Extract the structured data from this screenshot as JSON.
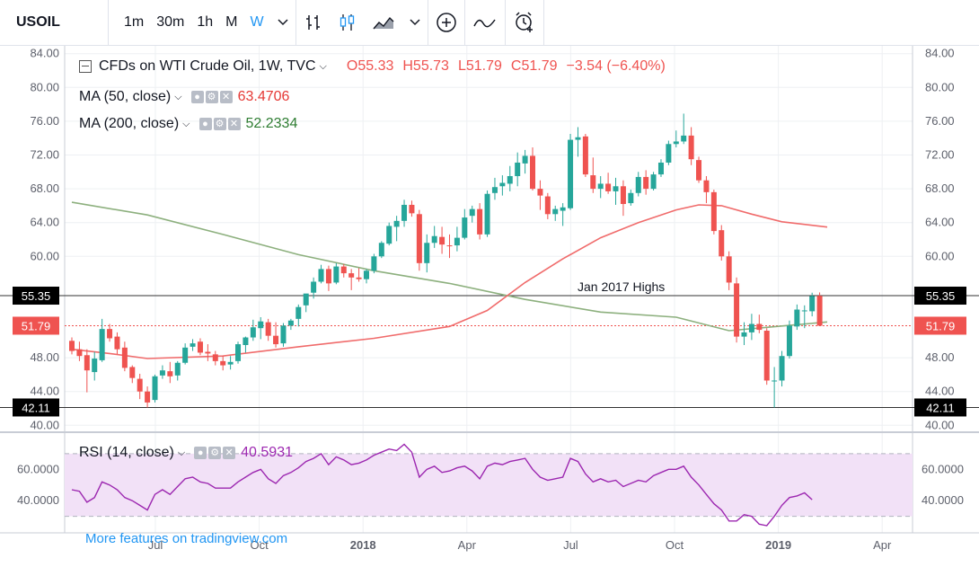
{
  "toolbar": {
    "symbol": "USOIL",
    "intervals": [
      "1m",
      "30m",
      "1h",
      "M",
      "W"
    ],
    "active_interval": "W",
    "icons": [
      "chevron-down-icon",
      "bar-style-icon",
      "candle-style-icon",
      "area-style-icon",
      "chevron-down-icon",
      "add-compare-icon",
      "indicators-icon",
      "alert-icon"
    ]
  },
  "legend": {
    "main_title": "CFDs on WTI Crude Oil, 1W, TVC",
    "open": "O55.33",
    "high": "H55.73",
    "low": "L51.79",
    "close": "C51.79",
    "change": "−3.54 (−6.40%)",
    "ma50_title": "MA (50, close)",
    "ma50_value": "63.4706",
    "ma200_title": "MA (200, close)",
    "ma200_value": "52.2334",
    "rsi_title": "RSI (14, close)",
    "rsi_value": "40.5931"
  },
  "promo_text": "More features on tradingview.com",
  "colors": {
    "up": "#26a69a",
    "down": "#ef5350",
    "ma50": "#f06b6b",
    "ma200": "#8db07e",
    "rsi": "#9c27b0",
    "rsi_band": "#f2e1f7",
    "ma200_text": "#2e7d32"
  },
  "chart_data": {
    "type": "candlestick",
    "main": {
      "y_ticks": [
        "84.00",
        "80.00",
        "76.00",
        "72.00",
        "68.00",
        "64.00",
        "60.00",
        "48.00",
        "44.00",
        "40.00"
      ],
      "ylim": [
        39.5,
        84.5
      ],
      "x_ticks": [
        "Jul",
        "Oct",
        "2018",
        "Apr",
        "Jul",
        "Oct",
        "2019",
        "Apr"
      ],
      "x_ticks_bold": [
        "2018",
        "2019"
      ],
      "candles": [
        {
          "o": 50.0,
          "h": 50.4,
          "l": 48.4,
          "c": 48.8
        },
        {
          "o": 49.0,
          "h": 49.9,
          "l": 47.6,
          "c": 48.2
        },
        {
          "o": 48.3,
          "h": 49.0,
          "l": 43.9,
          "c": 46.5
        },
        {
          "o": 46.3,
          "h": 48.7,
          "l": 45.3,
          "c": 47.9
        },
        {
          "o": 47.7,
          "h": 52.6,
          "l": 47.5,
          "c": 51.4
        },
        {
          "o": 51.4,
          "h": 52.0,
          "l": 49.9,
          "c": 50.3
        },
        {
          "o": 50.5,
          "h": 51.0,
          "l": 48.4,
          "c": 49.0
        },
        {
          "o": 49.2,
          "h": 49.9,
          "l": 46.4,
          "c": 46.8
        },
        {
          "o": 46.9,
          "h": 47.1,
          "l": 45.0,
          "c": 45.6
        },
        {
          "o": 45.5,
          "h": 46.1,
          "l": 43.1,
          "c": 44.0
        },
        {
          "o": 44.0,
          "h": 44.6,
          "l": 42.1,
          "c": 42.7
        },
        {
          "o": 43.0,
          "h": 46.0,
          "l": 42.7,
          "c": 45.8
        },
        {
          "o": 45.9,
          "h": 47.1,
          "l": 45.5,
          "c": 46.5
        },
        {
          "o": 46.4,
          "h": 47.5,
          "l": 45.0,
          "c": 45.8
        },
        {
          "o": 45.9,
          "h": 47.6,
          "l": 45.3,
          "c": 47.4
        },
        {
          "o": 47.4,
          "h": 49.7,
          "l": 47.2,
          "c": 49.2
        },
        {
          "o": 49.3,
          "h": 50.2,
          "l": 48.8,
          "c": 49.7
        },
        {
          "o": 49.9,
          "h": 50.3,
          "l": 48.3,
          "c": 48.6
        },
        {
          "o": 48.7,
          "h": 49.6,
          "l": 47.6,
          "c": 48.5
        },
        {
          "o": 48.4,
          "h": 48.8,
          "l": 47.1,
          "c": 47.6
        },
        {
          "o": 47.6,
          "h": 48.2,
          "l": 46.5,
          "c": 47.1
        },
        {
          "o": 47.2,
          "h": 48.2,
          "l": 46.6,
          "c": 47.5
        },
        {
          "o": 47.6,
          "h": 49.9,
          "l": 47.3,
          "c": 49.6
        },
        {
          "o": 49.5,
          "h": 50.5,
          "l": 48.6,
          "c": 50.4
        },
        {
          "o": 50.4,
          "h": 52.5,
          "l": 50.0,
          "c": 51.6
        },
        {
          "o": 51.5,
          "h": 52.8,
          "l": 50.2,
          "c": 52.3
        },
        {
          "o": 52.2,
          "h": 52.6,
          "l": 50.0,
          "c": 50.6
        },
        {
          "o": 50.6,
          "h": 52.2,
          "l": 49.2,
          "c": 49.6
        },
        {
          "o": 49.7,
          "h": 52.1,
          "l": 49.3,
          "c": 51.8
        },
        {
          "o": 51.8,
          "h": 52.6,
          "l": 51.3,
          "c": 52.4
        },
        {
          "o": 52.6,
          "h": 54.3,
          "l": 51.7,
          "c": 54.0
        },
        {
          "o": 54.2,
          "h": 55.4,
          "l": 53.4,
          "c": 55.6
        },
        {
          "o": 55.7,
          "h": 57.5,
          "l": 55.0,
          "c": 57.0
        },
        {
          "o": 57.0,
          "h": 59.0,
          "l": 56.8,
          "c": 58.5
        },
        {
          "o": 58.5,
          "h": 58.9,
          "l": 55.9,
          "c": 56.8
        },
        {
          "o": 56.9,
          "h": 59.2,
          "l": 56.7,
          "c": 58.8
        },
        {
          "o": 58.8,
          "h": 59.1,
          "l": 57.5,
          "c": 58.0
        },
        {
          "o": 58.0,
          "h": 58.5,
          "l": 56.0,
          "c": 57.5
        },
        {
          "o": 57.5,
          "h": 58.6,
          "l": 57.0,
          "c": 57.3
        },
        {
          "o": 57.3,
          "h": 58.5,
          "l": 56.8,
          "c": 58.3
        },
        {
          "o": 58.3,
          "h": 60.3,
          "l": 58.0,
          "c": 60.0
        },
        {
          "o": 60.0,
          "h": 61.8,
          "l": 59.8,
          "c": 61.6
        },
        {
          "o": 61.5,
          "h": 64.0,
          "l": 61.3,
          "c": 63.6
        },
        {
          "o": 63.5,
          "h": 64.8,
          "l": 61.8,
          "c": 64.2
        },
        {
          "o": 64.2,
          "h": 66.7,
          "l": 63.5,
          "c": 66.1
        },
        {
          "o": 66.1,
          "h": 66.6,
          "l": 64.7,
          "c": 65.1
        },
        {
          "o": 65.0,
          "h": 65.5,
          "l": 58.3,
          "c": 59.2
        },
        {
          "o": 59.2,
          "h": 62.6,
          "l": 58.1,
          "c": 61.6
        },
        {
          "o": 61.6,
          "h": 63.6,
          "l": 61.0,
          "c": 62.4
        },
        {
          "o": 62.3,
          "h": 63.5,
          "l": 60.3,
          "c": 61.4
        },
        {
          "o": 61.3,
          "h": 62.6,
          "l": 59.8,
          "c": 61.2
        },
        {
          "o": 61.3,
          "h": 63.5,
          "l": 60.6,
          "c": 62.2
        },
        {
          "o": 62.2,
          "h": 65.6,
          "l": 62.0,
          "c": 64.6
        },
        {
          "o": 64.8,
          "h": 66.0,
          "l": 64.0,
          "c": 65.6
        },
        {
          "o": 65.6,
          "h": 66.3,
          "l": 62.0,
          "c": 62.6
        },
        {
          "o": 62.6,
          "h": 67.8,
          "l": 62.3,
          "c": 67.4
        },
        {
          "o": 67.5,
          "h": 69.3,
          "l": 66.7,
          "c": 68.2
        },
        {
          "o": 68.3,
          "h": 69.6,
          "l": 67.2,
          "c": 68.7
        },
        {
          "o": 68.6,
          "h": 70.7,
          "l": 67.7,
          "c": 69.5
        },
        {
          "o": 69.5,
          "h": 72.3,
          "l": 68.3,
          "c": 71.1
        },
        {
          "o": 71.0,
          "h": 72.6,
          "l": 69.8,
          "c": 71.9
        },
        {
          "o": 71.9,
          "h": 72.9,
          "l": 67.8,
          "c": 68.0
        },
        {
          "o": 68.0,
          "h": 69.0,
          "l": 65.5,
          "c": 67.2
        },
        {
          "o": 67.1,
          "h": 67.5,
          "l": 64.4,
          "c": 65.0
        },
        {
          "o": 65.0,
          "h": 66.0,
          "l": 64.2,
          "c": 65.6
        },
        {
          "o": 65.4,
          "h": 66.3,
          "l": 63.6,
          "c": 65.8
        },
        {
          "o": 65.7,
          "h": 74.5,
          "l": 65.5,
          "c": 73.8
        },
        {
          "o": 73.8,
          "h": 75.3,
          "l": 71.8,
          "c": 74.1
        },
        {
          "o": 74.2,
          "h": 74.5,
          "l": 69.4,
          "c": 69.7
        },
        {
          "o": 69.6,
          "h": 71.7,
          "l": 67.5,
          "c": 68.0
        },
        {
          "o": 68.0,
          "h": 69.5,
          "l": 66.9,
          "c": 68.6
        },
        {
          "o": 68.6,
          "h": 69.9,
          "l": 67.4,
          "c": 67.7
        },
        {
          "o": 67.7,
          "h": 69.3,
          "l": 66.1,
          "c": 68.3
        },
        {
          "o": 68.3,
          "h": 69.0,
          "l": 64.8,
          "c": 66.2
        },
        {
          "o": 66.3,
          "h": 67.9,
          "l": 66.0,
          "c": 67.5
        },
        {
          "o": 67.5,
          "h": 70.0,
          "l": 67.1,
          "c": 69.4
        },
        {
          "o": 69.4,
          "h": 70.2,
          "l": 67.3,
          "c": 68.0
        },
        {
          "o": 68.0,
          "h": 70.0,
          "l": 67.8,
          "c": 69.7
        },
        {
          "o": 69.7,
          "h": 71.5,
          "l": 69.4,
          "c": 71.1
        },
        {
          "o": 71.1,
          "h": 73.7,
          "l": 70.8,
          "c": 73.3
        },
        {
          "o": 73.3,
          "h": 74.9,
          "l": 72.9,
          "c": 73.6
        },
        {
          "o": 73.6,
          "h": 76.9,
          "l": 73.3,
          "c": 74.3
        },
        {
          "o": 74.3,
          "h": 75.3,
          "l": 70.8,
          "c": 71.5
        },
        {
          "o": 71.4,
          "h": 71.8,
          "l": 68.7,
          "c": 69.0
        },
        {
          "o": 69.0,
          "h": 69.5,
          "l": 66.3,
          "c": 67.6
        },
        {
          "o": 67.6,
          "h": 67.9,
          "l": 62.6,
          "c": 63.0
        },
        {
          "o": 63.1,
          "h": 63.7,
          "l": 59.5,
          "c": 60.0
        },
        {
          "o": 60.0,
          "h": 60.6,
          "l": 56.0,
          "c": 56.9
        },
        {
          "o": 56.8,
          "h": 57.5,
          "l": 49.8,
          "c": 50.5
        },
        {
          "o": 50.5,
          "h": 52.2,
          "l": 49.5,
          "c": 51.0
        },
        {
          "o": 51.0,
          "h": 53.2,
          "l": 50.1,
          "c": 52.0
        },
        {
          "o": 52.0,
          "h": 53.1,
          "l": 50.9,
          "c": 51.3
        },
        {
          "o": 51.2,
          "h": 51.5,
          "l": 44.8,
          "c": 45.3
        },
        {
          "o": 45.2,
          "h": 46.9,
          "l": 42.1,
          "c": 45.3
        },
        {
          "o": 45.3,
          "h": 48.8,
          "l": 44.6,
          "c": 48.2
        },
        {
          "o": 48.2,
          "h": 52.4,
          "l": 47.9,
          "c": 51.8
        },
        {
          "o": 51.7,
          "h": 54.3,
          "l": 51.3,
          "c": 53.7
        },
        {
          "o": 53.6,
          "h": 54.2,
          "l": 51.5,
          "c": 53.6
        },
        {
          "o": 53.5,
          "h": 55.7,
          "l": 52.9,
          "c": 55.3
        },
        {
          "o": 55.33,
          "h": 55.73,
          "l": 51.79,
          "c": 51.79
        }
      ],
      "ma50": [
        [
          0,
          49.0
        ],
        [
          5,
          48.5
        ],
        [
          10,
          47.9
        ],
        [
          20,
          48.2
        ],
        [
          30,
          49.3
        ],
        [
          40,
          50.3
        ],
        [
          50,
          51.7
        ],
        [
          55,
          53.6
        ],
        [
          60,
          56.9
        ],
        [
          65,
          59.7
        ],
        [
          70,
          62.2
        ],
        [
          75,
          64.0
        ],
        [
          80,
          65.5
        ],
        [
          83,
          66.1
        ],
        [
          86,
          66.0
        ],
        [
          90,
          65.0
        ],
        [
          94,
          64.1
        ],
        [
          100,
          63.47
        ]
      ],
      "ma200": [
        [
          0,
          66.4
        ],
        [
          10,
          64.9
        ],
        [
          20,
          62.6
        ],
        [
          30,
          60.2
        ],
        [
          40,
          58.3
        ],
        [
          50,
          56.8
        ],
        [
          60,
          54.9
        ],
        [
          70,
          53.4
        ],
        [
          80,
          52.8
        ],
        [
          87,
          51.2
        ],
        [
          92,
          51.6
        ],
        [
          100,
          52.23
        ]
      ],
      "hlines": [
        {
          "value": 55.35,
          "label": "55.35",
          "text": "Jan 2017 Highs"
        },
        {
          "value": 42.11,
          "label": "42.11"
        }
      ],
      "last_price": {
        "value": 51.79,
        "label": "51.79"
      }
    },
    "rsi": {
      "y_ticks": [
        "60.0000",
        "40.0000"
      ],
      "ylim": [
        20,
        82
      ],
      "band": [
        30,
        70
      ],
      "values": [
        47,
        46,
        39,
        42,
        52,
        50,
        47,
        42,
        40,
        37,
        34,
        44,
        47,
        44,
        49,
        54,
        55,
        52,
        51,
        48,
        48,
        48,
        52,
        55,
        58,
        60,
        54,
        51,
        56,
        58,
        61,
        65,
        67,
        70,
        63,
        68,
        66,
        63,
        64,
        66,
        69,
        71,
        73,
        72,
        76,
        71,
        55,
        60,
        62,
        58,
        59,
        61,
        62,
        59,
        54,
        62,
        64,
        63,
        65,
        66,
        67,
        60,
        55,
        53,
        54,
        55,
        67,
        65,
        57,
        52,
        54,
        52,
        53,
        49,
        51,
        53,
        52,
        56,
        58,
        60,
        60,
        62,
        55,
        50,
        44,
        38,
        34,
        27,
        27,
        31,
        30,
        25,
        24,
        30,
        37,
        42,
        43,
        45,
        40.59
      ]
    }
  }
}
